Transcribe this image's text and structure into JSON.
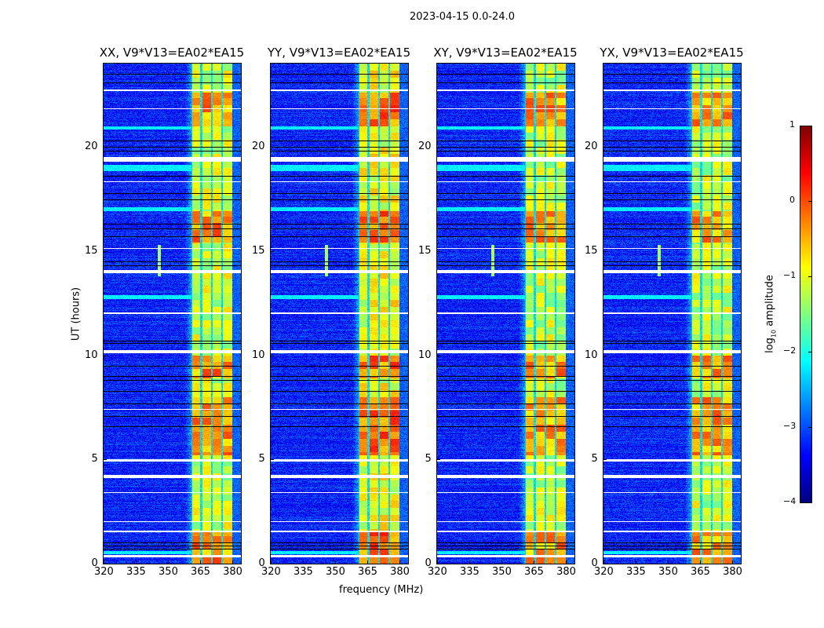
{
  "chart_data": {
    "type": "heatmap",
    "title": "2023-04-15 0.0-24.0",
    "panels": [
      {
        "title": "XX, V9*V13=EA02*EA15",
        "seed": 11,
        "gain": 0.0
      },
      {
        "title": "YY, V9*V13=EA02*EA15",
        "seed": 23,
        "gain": 0.15
      },
      {
        "title": "XY, V9*V13=EA02*EA15",
        "seed": 37,
        "gain": -0.05
      },
      {
        "title": "YX, V9*V13=EA02*EA15",
        "seed": 51,
        "gain": -0.05
      }
    ],
    "xlabel": "frequency (MHz)",
    "ylabel": "UT (hours)",
    "xlim": [
      320,
      384
    ],
    "ylim": [
      0,
      24
    ],
    "xticks": [
      "320",
      "335",
      "350",
      "365",
      "380"
    ],
    "yticks": [
      "0",
      "5",
      "10",
      "15",
      "20"
    ],
    "colorbar": {
      "label_prefix": "log",
      "label_sub": "10",
      "label_suffix": " amplitude",
      "ticks": [
        "1",
        "0",
        "−1",
        "−2",
        "−3",
        "−4"
      ],
      "range": [
        -4,
        1
      ],
      "colormap": "jet"
    },
    "background_level": -3.2,
    "band": {
      "freq_range": [
        361,
        380
      ],
      "level": -1.1,
      "dividers": [
        365.5,
        370.5,
        375.3
      ]
    },
    "bright_intervals": [
      [
        21.0,
        22.6
      ],
      [
        15.4,
        16.9
      ],
      [
        8.9,
        10.0
      ],
      [
        5.2,
        8.0
      ],
      [
        0.0,
        1.5
      ]
    ],
    "elevated_rows": [
      [
        20.85,
        21.0
      ],
      [
        18.85,
        19.15
      ],
      [
        16.9,
        17.1
      ],
      [
        12.7,
        12.9
      ],
      [
        0.45,
        0.6
      ]
    ],
    "flagged_intervals": [
      [
        19.3,
        19.5
      ],
      [
        13.93,
        14.1
      ],
      [
        10.1,
        10.25
      ],
      [
        4.88,
        5.0
      ],
      [
        4.1,
        4.25
      ],
      [
        1.5,
        1.58
      ],
      [
        0.32,
        0.4
      ],
      [
        22.7,
        22.75
      ],
      [
        21.8,
        21.85
      ],
      [
        18.3,
        18.35
      ],
      [
        15.1,
        15.14
      ],
      [
        12.0,
        12.04
      ],
      [
        7.4,
        7.44
      ],
      [
        3.4,
        3.44
      ],
      [
        2.0,
        2.04
      ]
    ],
    "dropout_hours": [
      23.5,
      23.1,
      20.3,
      20.0,
      19.8,
      18.6,
      17.8,
      17.5,
      16.3,
      16.1,
      15.7,
      14.5,
      14.3,
      10.7,
      10.6,
      9.5,
      9.0,
      8.8,
      8.3,
      7.7,
      7.1,
      6.6,
      1.0,
      0.85,
      0.7
    ],
    "rfi_spike": {
      "freq": 346,
      "time_range": [
        13.8,
        15.3
      ]
    }
  }
}
